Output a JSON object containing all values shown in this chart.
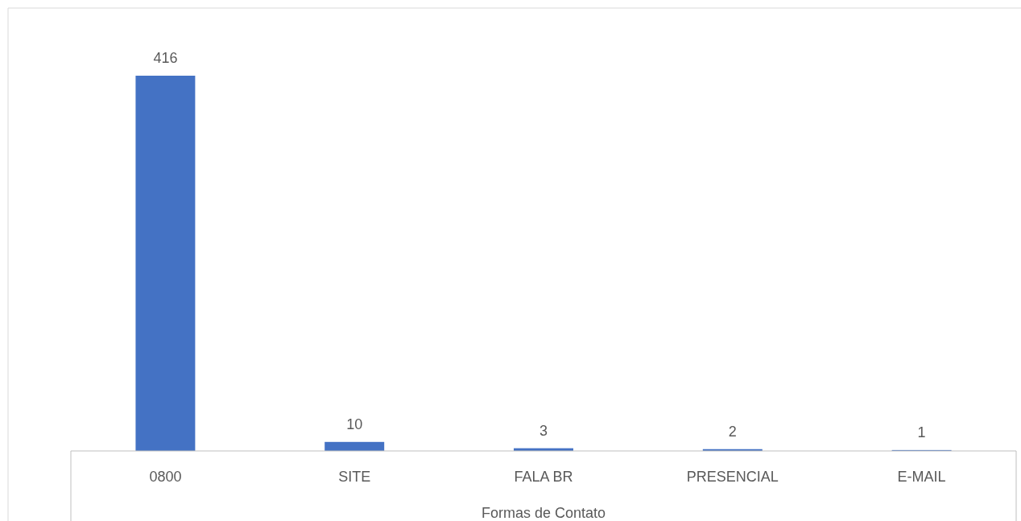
{
  "chart_data": {
    "type": "bar",
    "xlabel": "Formas de Contato",
    "categories": [
      "0800",
      "SITE",
      "FALA BR",
      "PRESENCIAL",
      "E-MAIL"
    ],
    "values": [
      416,
      10,
      3,
      2,
      1
    ],
    "color": "#4472c4",
    "data_labels": true
  }
}
